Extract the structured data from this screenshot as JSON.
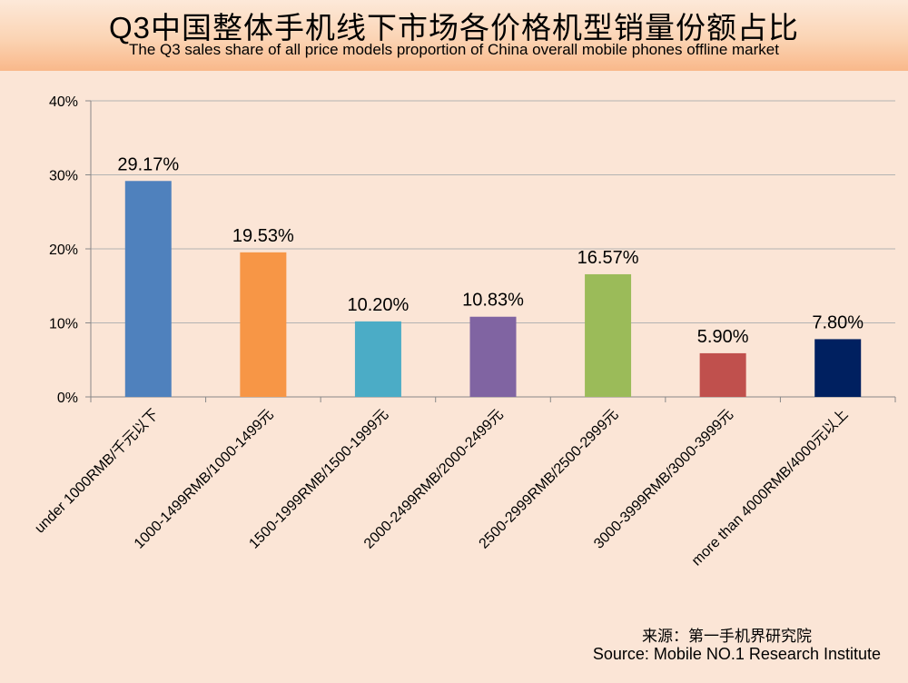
{
  "header": {
    "title": "Q3中国整体手机线下市场各价格机型销量份额占比",
    "subtitle": "The Q3 sales share of all price models proportion of China overall mobile phones offline market"
  },
  "source": {
    "cn": "来源：第一手机界研究院",
    "en": "Source: Mobile NO.1 Research Institute"
  },
  "chart_data": {
    "type": "bar",
    "categories": [
      "under 1000RMB/千元以下",
      "1000-1499RMB/1000-1499元",
      "1500-1999RMB/1500-1999元",
      "2000-2499RMB/2000-2499元",
      "2500-2999RMB/2500-2999元",
      "3000-3999RMB/3000-3999元",
      "more than 4000RMB/4000元以上"
    ],
    "values": [
      29.17,
      19.53,
      10.2,
      10.83,
      16.57,
      5.9,
      7.8
    ],
    "data_labels": [
      "29.17%",
      "19.53%",
      "10.20%",
      "10.83%",
      "16.57%",
      "5.90%",
      "7.80%"
    ],
    "colors": [
      "#4f81bd",
      "#f79646",
      "#4bacc6",
      "#8064a2",
      "#9bbb59",
      "#c0504d",
      "#002060"
    ],
    "ylim": [
      0,
      40
    ],
    "yticks": [
      "0%",
      "10%",
      "20%",
      "30%",
      "40%"
    ],
    "grid": true,
    "legend": "none"
  }
}
